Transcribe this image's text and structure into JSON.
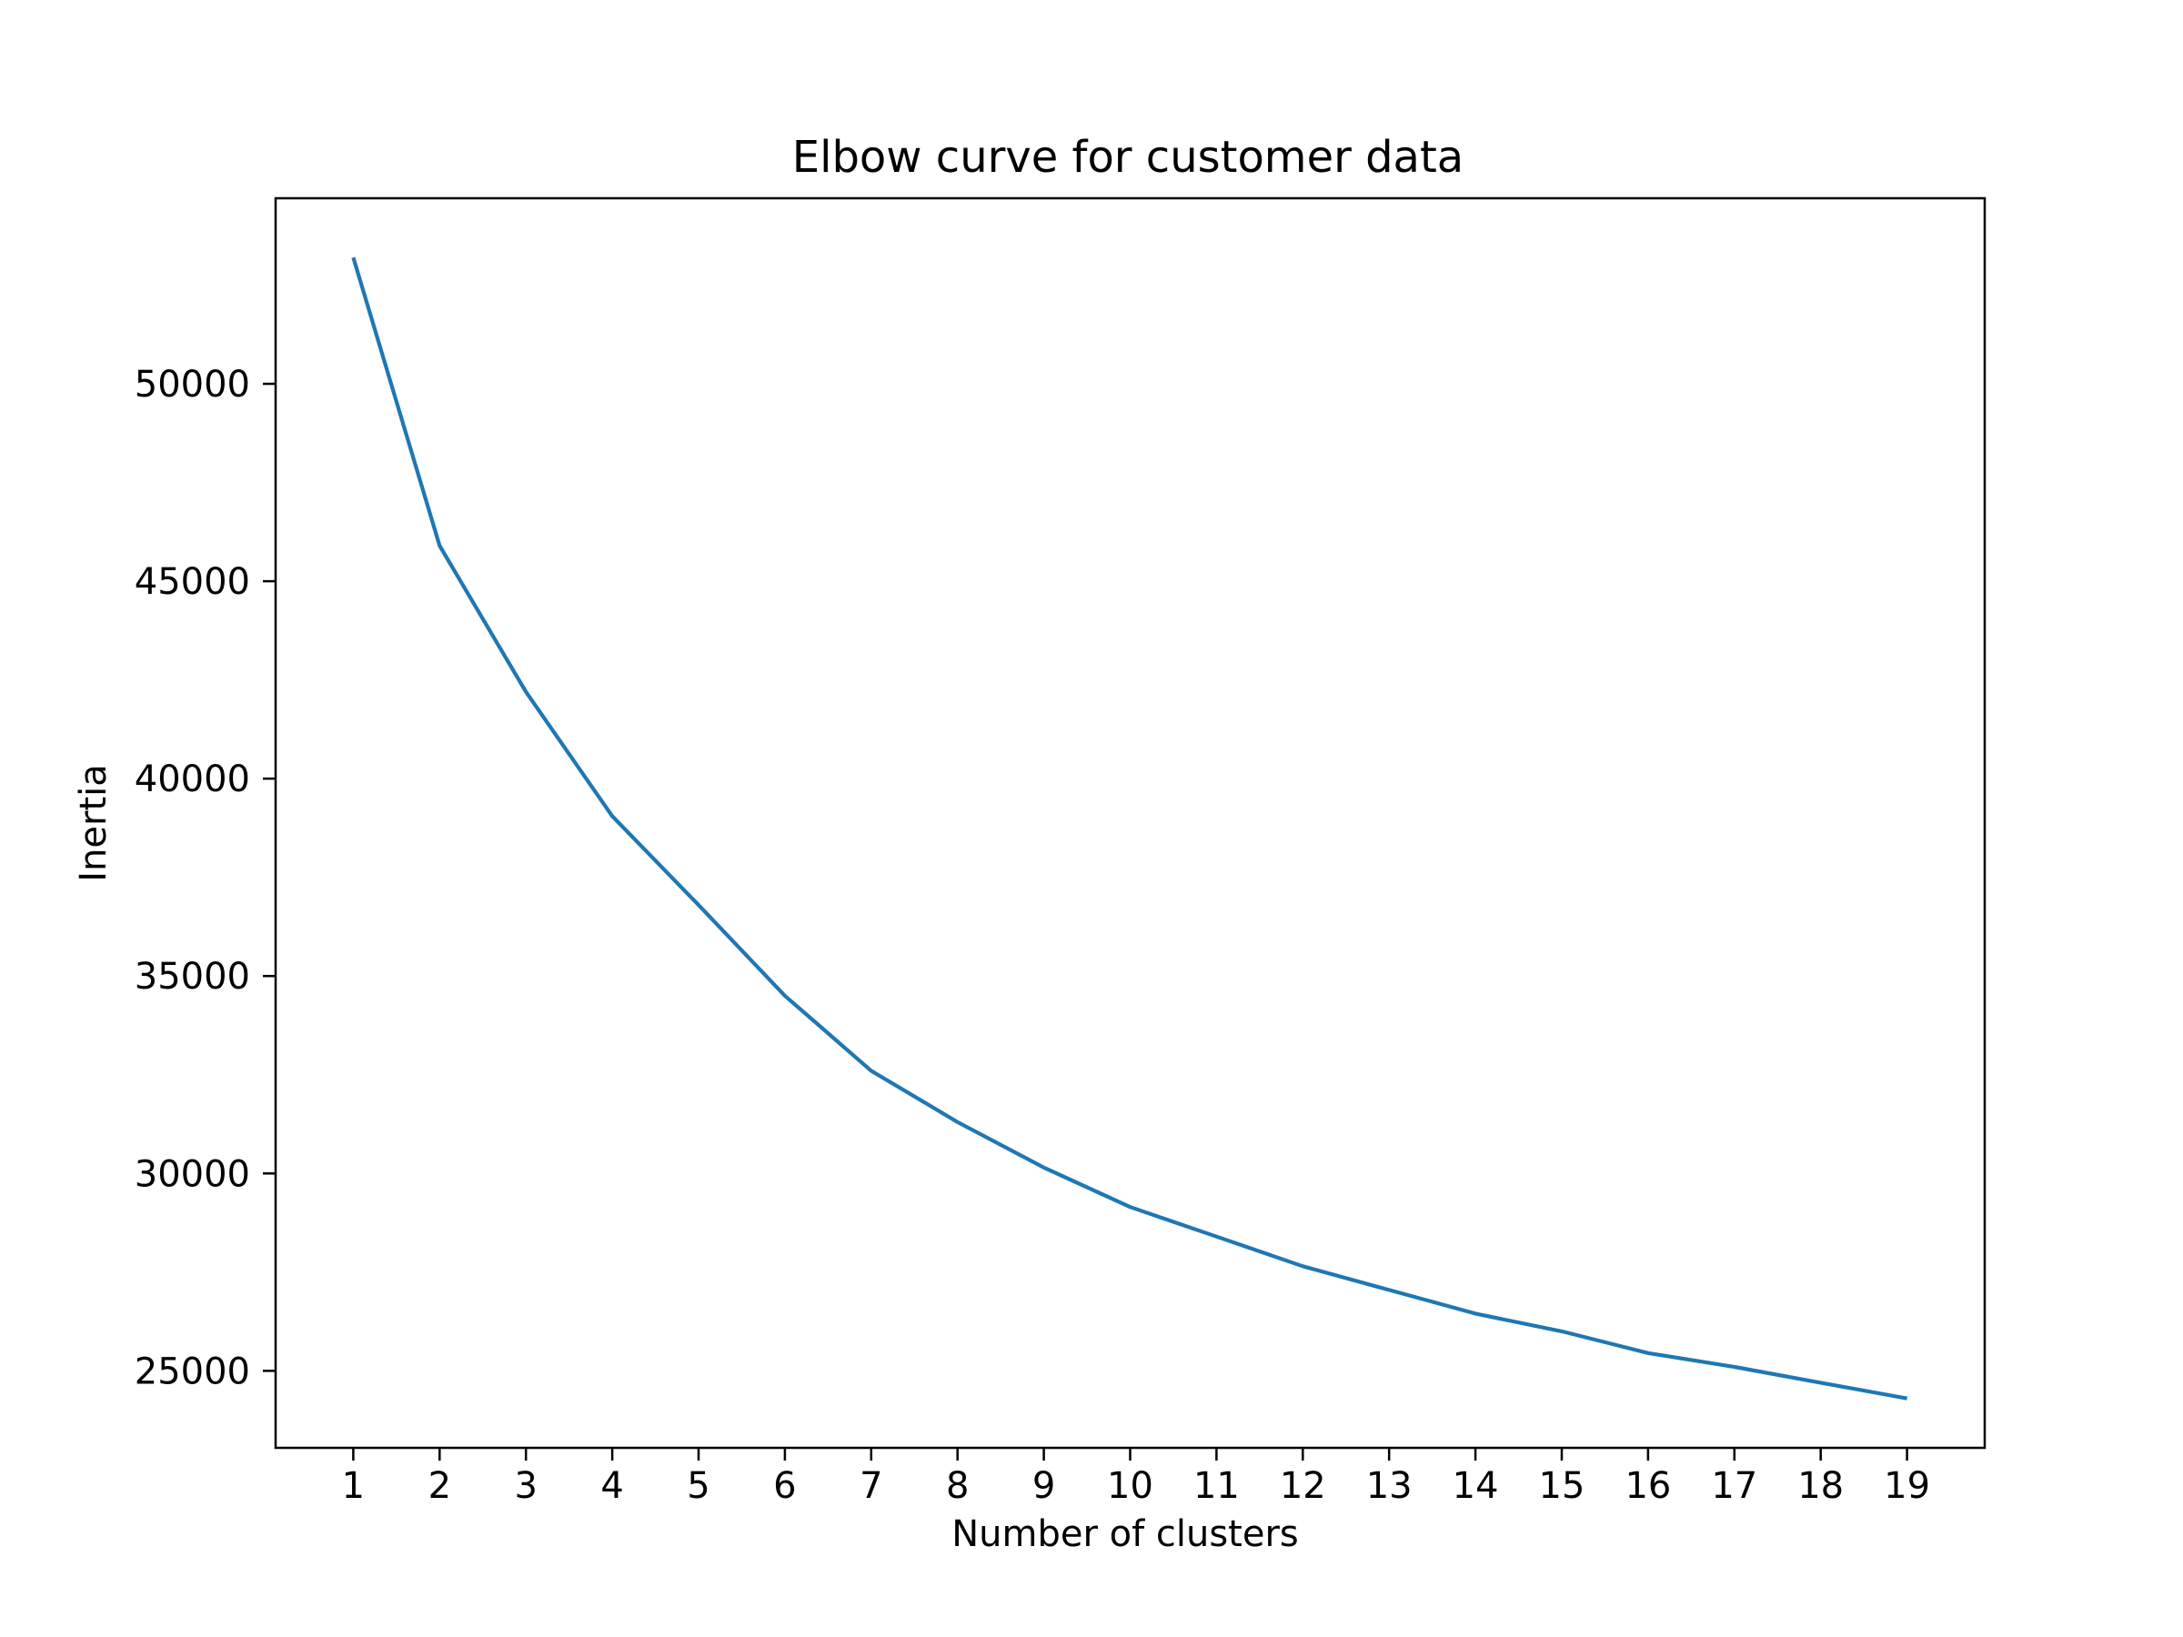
{
  "chart_data": {
    "type": "line",
    "title": "Elbow curve for customer data",
    "xlabel": "Number of clusters",
    "ylabel": "Inertia",
    "x": [
      1,
      2,
      3,
      4,
      5,
      6,
      7,
      8,
      9,
      10,
      11,
      12,
      13,
      14,
      15,
      16,
      17,
      18,
      19
    ],
    "series": [
      {
        "values": [
          53200,
          45900,
          42200,
          39050,
          36800,
          34500,
          32600,
          31300,
          30150,
          29150,
          28400,
          27650,
          27050,
          26450,
          26000,
          25450,
          25100,
          24700,
          24300
        ],
        "color": "#1f77b4"
      }
    ],
    "xlim": [
      0.1,
      19.9
    ],
    "ylim": [
      23050,
      54700
    ],
    "xticks": [
      "1",
      "2",
      "3",
      "4",
      "5",
      "6",
      "7",
      "8",
      "9",
      "10",
      "11",
      "12",
      "13",
      "14",
      "15",
      "16",
      "17",
      "18",
      "19"
    ],
    "yticks": [
      25000,
      30000,
      35000,
      40000,
      45000,
      50000
    ],
    "ytick_labels": [
      "25000",
      "30000",
      "35000",
      "40000",
      "45000",
      "50000"
    ],
    "grid": false,
    "legend": false
  }
}
